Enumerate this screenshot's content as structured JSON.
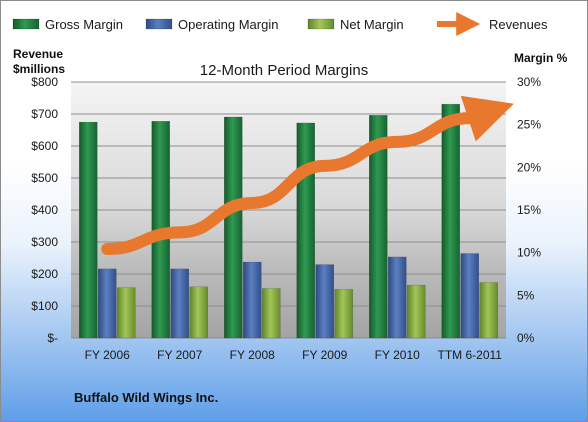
{
  "chart_data": {
    "type": "bar",
    "title": "12-Month Period Margins",
    "footer": "Buffalo Wild Wings Inc.",
    "categories": [
      "FY 2006",
      "FY 2007",
      "FY 2008",
      "FY 2009",
      "FY 2010",
      "TTM 6-2011"
    ],
    "y_left": {
      "title_line1": "Revenue",
      "title_line2": "$millions",
      "ylim": [
        0,
        800
      ],
      "ticks": [
        {
          "value": 0,
          "label": "$-"
        },
        {
          "value": 100,
          "label": "$100"
        },
        {
          "value": 200,
          "label": "$200"
        },
        {
          "value": 300,
          "label": "$300"
        },
        {
          "value": 400,
          "label": "$400"
        },
        {
          "value": 500,
          "label": "$500"
        },
        {
          "value": 600,
          "label": "$600"
        },
        {
          "value": 700,
          "label": "$700"
        },
        {
          "value": 800,
          "label": "$800"
        }
      ]
    },
    "y_right": {
      "title": "Margin %",
      "ylim": [
        0,
        30
      ],
      "ticks": [
        {
          "value": 0,
          "label": "0%"
        },
        {
          "value": 5,
          "label": "5%"
        },
        {
          "value": 10,
          "label": "10%"
        },
        {
          "value": 15,
          "label": "15%"
        },
        {
          "value": 20,
          "label": "20%"
        },
        {
          "value": 25,
          "label": "25%"
        },
        {
          "value": 30,
          "label": "30%"
        }
      ]
    },
    "series": [
      {
        "name": "Gross Margin",
        "type": "bar",
        "axis": "right",
        "color": "#1e7a3c",
        "values": [
          25.3,
          25.4,
          25.9,
          25.2,
          26.1,
          27.4
        ]
      },
      {
        "name": "Operating Margin",
        "type": "bar",
        "axis": "right",
        "color": "#3d5fa0",
        "values": [
          8.1,
          8.1,
          8.9,
          8.6,
          9.5,
          9.9
        ]
      },
      {
        "name": "Net Margin",
        "type": "bar",
        "axis": "right",
        "color": "#7da33a",
        "values": [
          5.9,
          6.0,
          5.8,
          5.7,
          6.2,
          6.5
        ]
      },
      {
        "name": "Revenues",
        "type": "line",
        "axis": "left",
        "color": "#e8782e",
        "values": [
          278,
          330,
          422,
          538,
          613,
          687
        ]
      }
    ],
    "grid": true,
    "legend_position": "top"
  }
}
